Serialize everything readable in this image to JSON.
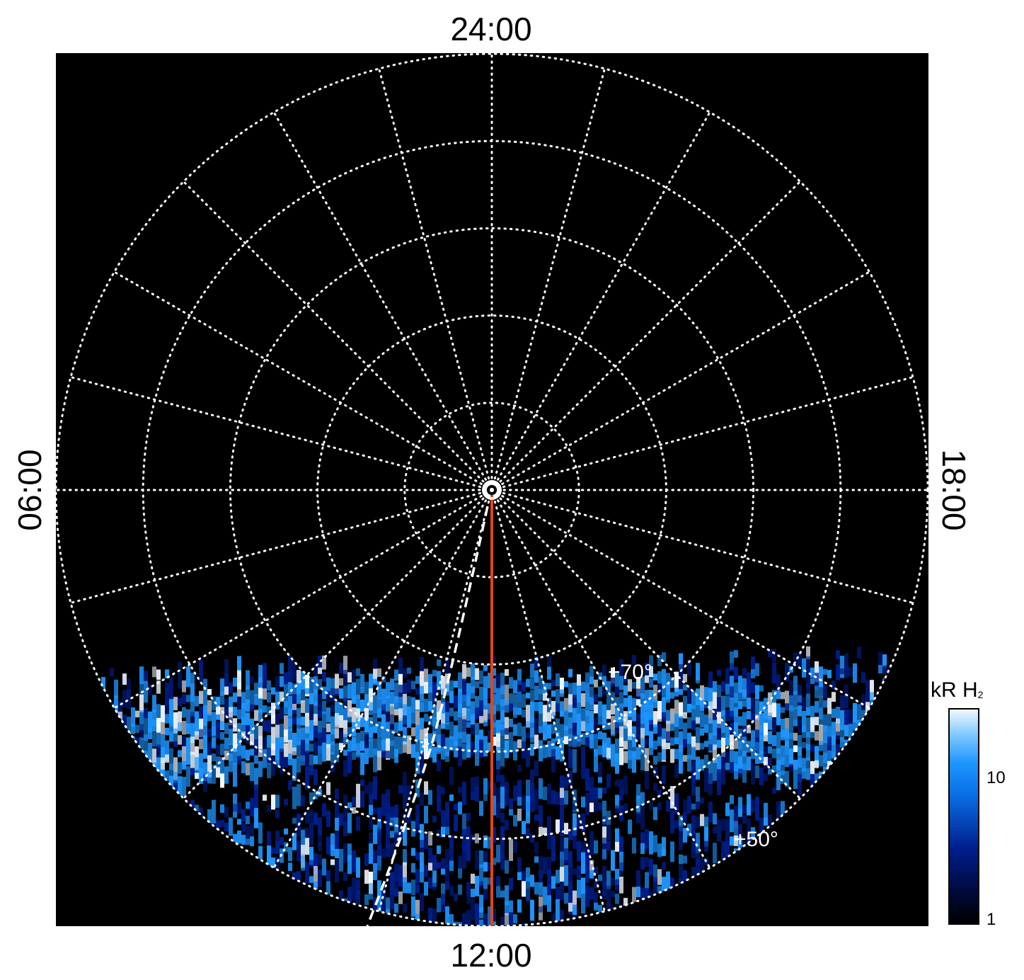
{
  "labels": {
    "top": "24:00",
    "bottom": "12:00",
    "left": "06:00",
    "right": "18:00"
  },
  "latitude_labels": [
    {
      "text": "+70°",
      "lat": 70,
      "lt": 17.2
    },
    {
      "text": "+50°",
      "lat": 50,
      "lt": 15.6
    }
  ],
  "grid": {
    "latitude_circles": [
      90,
      80,
      70,
      60,
      50,
      40
    ],
    "longitude_lines": 24
  },
  "colorbar": {
    "title": "kR H",
    "title_sub": "2",
    "scale": "log",
    "ticks": [
      "10",
      "1"
    ],
    "colors": [
      "#000000",
      "#001e8c",
      "#1e96ff",
      "#f2f8ff"
    ]
  },
  "overlays": {
    "red_line_color": "#e0461a",
    "dashed_line_color": "#ffffff",
    "grid_color": "#ffffff"
  }
}
